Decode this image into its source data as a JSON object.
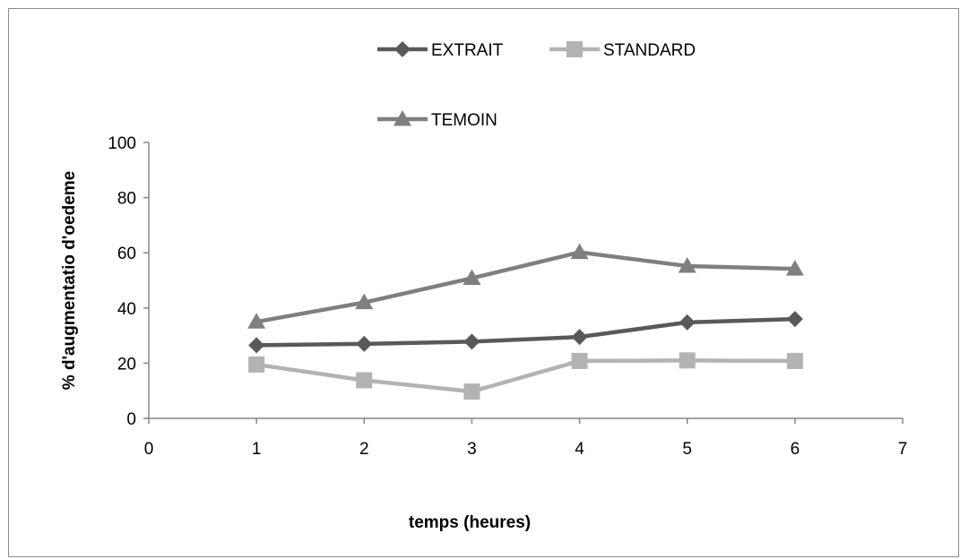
{
  "chart_data": {
    "type": "line",
    "title": "",
    "xlabel": "temps (heures)",
    "ylabel": "% d'augmentatio  d'oedeme",
    "xlim": [
      0,
      7
    ],
    "ylim": [
      0,
      100
    ],
    "x_ticks": [
      "0",
      "1",
      "2",
      "3",
      "4",
      "5",
      "6",
      "7"
    ],
    "y_ticks": [
      "0",
      "20",
      "40",
      "60",
      "80",
      "100"
    ],
    "grid": false,
    "legend_position": "top",
    "x": [
      1,
      2,
      3,
      4,
      5,
      6
    ],
    "series": [
      {
        "name": "EXTRAIT",
        "marker": "diamond",
        "color": "#595959",
        "values": [
          26.5,
          27,
          27.8,
          29.5,
          34.8,
          36
        ]
      },
      {
        "name": "STANDARD",
        "marker": "square",
        "color": "#b3b3b3",
        "values": [
          19.5,
          13.8,
          9.7,
          20.8,
          21,
          20.8
        ]
      },
      {
        "name": "TEMOIN",
        "marker": "triangle",
        "color": "#7f7f7f",
        "values": [
          35,
          42,
          50.8,
          60.2,
          55.2,
          54.2
        ]
      }
    ]
  }
}
